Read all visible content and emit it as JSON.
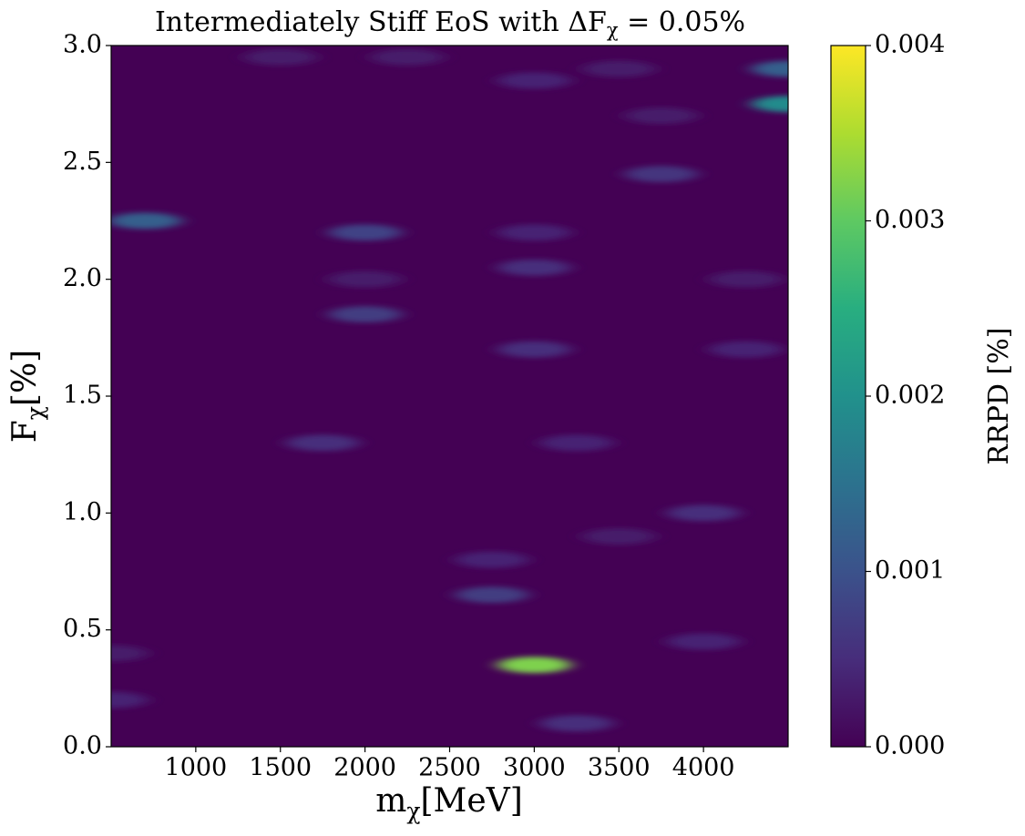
{
  "chart_data": {
    "type": "heatmap",
    "title": [
      "Intermediately Stiff EoS with ΔF",
      "χ",
      " = 0.05%"
    ],
    "x_label": [
      "m",
      "χ",
      "[MeV]"
    ],
    "y_label": [
      "F",
      "χ",
      "[%]"
    ],
    "colorbar_label": "RRPD [%]",
    "xlim": [
      500,
      4500
    ],
    "xticks": [
      1000,
      1500,
      2000,
      2500,
      3000,
      3500,
      4000
    ],
    "ylim": [
      0,
      3
    ],
    "yticks": [
      {
        "value": 0,
        "label": "0.0"
      },
      0.5,
      {
        "value": 1,
        "label": "1.0"
      },
      1.5,
      {
        "value": 2,
        "label": "2.0"
      },
      2.5,
      {
        "value": 3,
        "label": "3.0"
      }
    ],
    "clim": [
      0,
      0.004
    ],
    "cticks": [
      {
        "value": 0,
        "label": "0.000"
      },
      {
        "value": 0.001,
        "label": "0.001"
      },
      {
        "value": 0.002,
        "label": "0.002"
      },
      {
        "value": 0.003,
        "label": "0.003"
      },
      {
        "value": 0.004,
        "label": "0.004"
      }
    ],
    "colormap": "viridis",
    "cells": {
      "x": [
        700,
        2000,
        2000,
        3000,
        2750,
        2750,
        1750,
        3750,
        4000,
        4500,
        4500,
        3000,
        3000,
        3000,
        3000,
        3250,
        3250,
        4000,
        3500,
        2000,
        500,
        500,
        4250,
        4250,
        3500,
        1500,
        2250,
        3750
      ],
      "y": [
        2.25,
        2.2,
        1.85,
        0.35,
        0.65,
        0.8,
        1.3,
        2.45,
        1.0,
        2.75,
        2.9,
        1.7,
        2.05,
        2.2,
        2.85,
        0.1,
        1.3,
        0.45,
        0.9,
        2.0,
        0.2,
        0.4,
        1.7,
        2.0,
        2.9,
        2.95,
        2.95,
        2.7
      ],
      "values": [
        0.0012,
        0.0008,
        0.0007,
        0.0032,
        0.0007,
        0.0004,
        0.0005,
        0.0006,
        0.0005,
        0.0019,
        0.0012,
        0.0005,
        0.0005,
        0.0004,
        0.0004,
        0.0005,
        0.0004,
        0.0004,
        0.0003,
        0.0003,
        0.0004,
        0.0003,
        0.0004,
        0.0003,
        0.0003,
        0.0003,
        0.0003,
        0.0003
      ]
    }
  }
}
